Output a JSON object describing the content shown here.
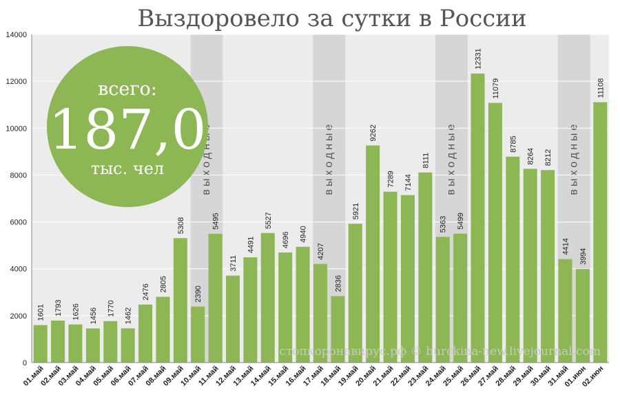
{
  "chart_data": {
    "type": "bar",
    "title": "Выздоровело за сутки в России",
    "ylim": [
      0,
      14000
    ],
    "yticks": [
      0,
      2000,
      4000,
      6000,
      8000,
      10000,
      12000,
      14000
    ],
    "grid": true,
    "categories": [
      "01.май",
      "02.май",
      "03.май",
      "04.май",
      "05.май",
      "06.май",
      "07.май",
      "08.май",
      "09.май",
      "10.май",
      "11.май",
      "12.май",
      "13.май",
      "14.май",
      "15.май",
      "16.май",
      "17.май",
      "18.май",
      "19.май",
      "20.май",
      "21.май",
      "22.май",
      "23.май",
      "24.май",
      "25.май",
      "26.май",
      "27.май",
      "28.май",
      "29.май",
      "30.май",
      "31.май",
      "01.июн",
      "02.июн"
    ],
    "values": [
      1601,
      1793,
      1626,
      1456,
      1770,
      1462,
      2476,
      2805,
      5308,
      2390,
      5495,
      3711,
      4491,
      5527,
      4696,
      4940,
      4207,
      2836,
      5921,
      9262,
      7289,
      7144,
      8111,
      5363,
      5499,
      12331,
      11079,
      8785,
      8264,
      8212,
      4414,
      3994,
      11108
    ],
    "bar_color": "#8db654",
    "weekend_bands": [
      {
        "from": "10.май",
        "to": "11.май",
        "label": "выходные"
      },
      {
        "from": "17.май",
        "to": "18.май",
        "label": "выходные"
      },
      {
        "from": "24.май",
        "to": "25.май",
        "label": "выходные"
      },
      {
        "from": "31.май",
        "to": "01.июн",
        "label": "выходные"
      }
    ]
  },
  "callout": {
    "top": "всего:",
    "value": "187,0",
    "bottom": "тыс. чел",
    "color": "#8db654"
  },
  "watermark": "стопкоронавирус.рф © burckina-new.livejournal.com"
}
